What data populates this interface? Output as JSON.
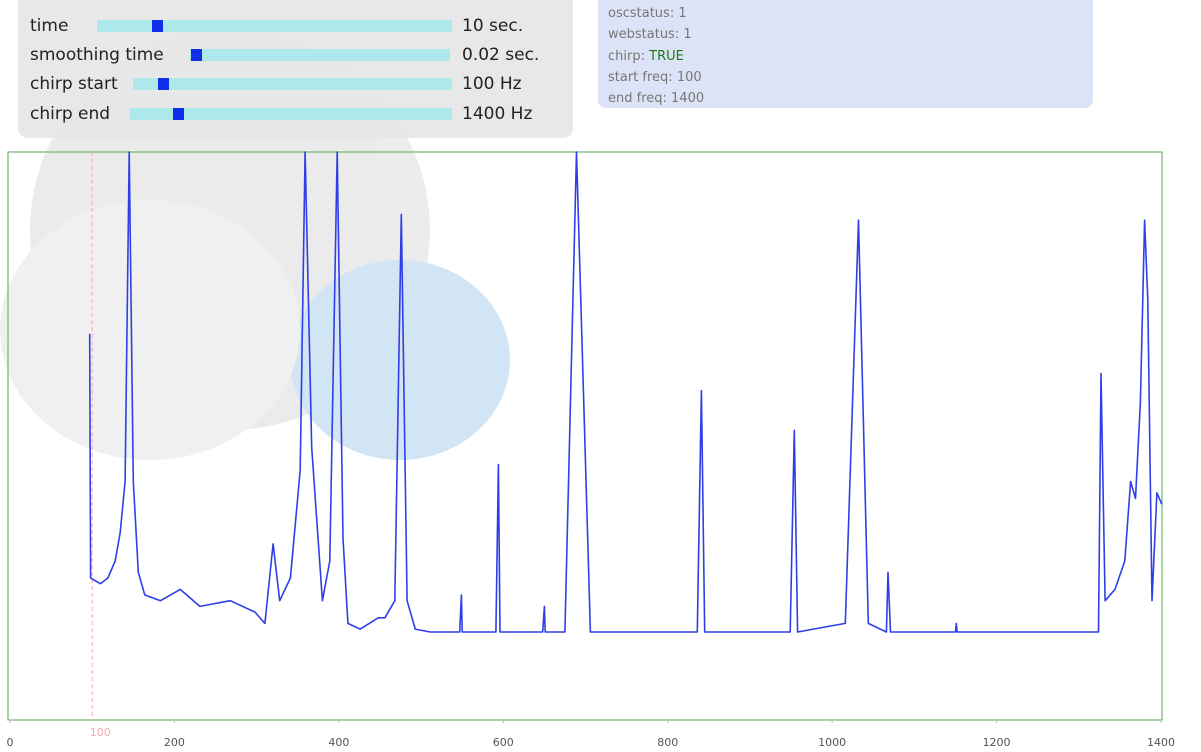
{
  "controls": [
    {
      "label": "time",
      "value": "10 sec."
    },
    {
      "label": "smoothing time",
      "value": "0.02 sec."
    },
    {
      "label": "chirp start",
      "value": "100 Hz"
    },
    {
      "label": "chirp end",
      "value": "1400 Hz"
    }
  ],
  "status": [
    {
      "key": "oscstatus:",
      "value": "1"
    },
    {
      "key": "webstatus:",
      "value": "1"
    },
    {
      "key": "chirp:",
      "value": "TRUE"
    },
    {
      "key": "start freq:",
      "value": "100"
    },
    {
      "key": "end freq:",
      "value": "1400"
    }
  ],
  "chart_data": {
    "type": "line",
    "color": "#2f3ee8",
    "frame_color": "#6fb86f",
    "x": [
      97,
      98,
      110,
      119,
      128,
      134,
      140,
      145,
      150,
      156,
      164,
      183,
      207,
      231,
      268,
      298,
      310,
      320,
      328,
      341,
      353,
      359,
      367,
      380,
      389,
      398,
      405,
      411,
      426,
      448,
      456,
      468,
      476,
      483,
      493,
      511,
      547,
      549,
      550,
      591,
      594,
      596,
      648,
      650,
      651,
      675,
      689,
      706,
      836,
      841,
      845,
      949,
      954,
      958,
      1016,
      1032,
      1044,
      1066,
      1068,
      1071,
      1150,
      1151,
      1152,
      1324,
      1327,
      1332,
      1344,
      1356,
      1363,
      1369,
      1375,
      1380,
      1384,
      1389,
      1395,
      1401
    ],
    "values": [
      0.68,
      0.25,
      0.24,
      0.25,
      0.28,
      0.33,
      0.42,
      1.0,
      0.42,
      0.26,
      0.22,
      0.21,
      0.23,
      0.2,
      0.21,
      0.19,
      0.17,
      0.31,
      0.21,
      0.25,
      0.44,
      1.0,
      0.48,
      0.21,
      0.28,
      1.0,
      0.32,
      0.17,
      0.16,
      0.18,
      0.18,
      0.21,
      0.89,
      0.21,
      0.16,
      0.155,
      0.155,
      0.22,
      0.155,
      0.155,
      0.45,
      0.155,
      0.155,
      0.2,
      0.155,
      0.155,
      1.0,
      0.155,
      0.155,
      0.58,
      0.155,
      0.155,
      0.51,
      0.155,
      0.17,
      0.88,
      0.17,
      0.155,
      0.26,
      0.155,
      0.155,
      0.17,
      0.155,
      0.155,
      0.61,
      0.21,
      0.23,
      0.28,
      0.42,
      0.39,
      0.56,
      0.88,
      0.74,
      0.21,
      0.4,
      0.38
    ],
    "xlim": [
      0,
      1400
    ],
    "ylim": [
      0,
      1
    ],
    "xticks": [
      0,
      200,
      400,
      600,
      800,
      1000,
      1200,
      1400
    ],
    "markers": [
      100
    ],
    "marker_color": "#f5a9b8"
  }
}
